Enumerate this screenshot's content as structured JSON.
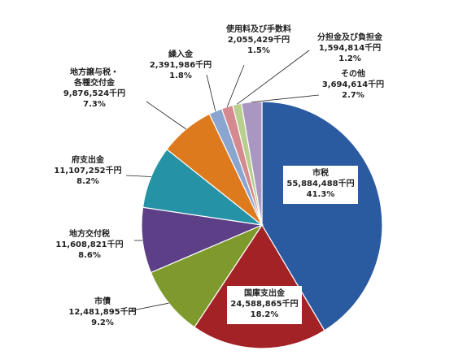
{
  "chart_data": {
    "type": "pie",
    "unit": "千円",
    "slices": [
      {
        "name": "市税",
        "value": 55884488,
        "value_label": "55,884,488千円",
        "percent_label": "41.3%",
        "color": "#2A5AA0"
      },
      {
        "name": "国庫支出金",
        "value": 24588865,
        "value_label": "24,588,865千円",
        "percent_label": "18.2%",
        "color": "#A32225"
      },
      {
        "name": "市債",
        "value": 12481895,
        "value_label": "12,481,895千円",
        "percent_label": "9.2%",
        "color": "#7E9A2D"
      },
      {
        "name": "地方交付税",
        "value": 11608821,
        "value_label": "11,608,821千円",
        "percent_label": "8.6%",
        "color": "#5C3F86"
      },
      {
        "name": "府支出金",
        "value": 11107252,
        "value_label": "11,107,252千円",
        "percent_label": "8.2%",
        "color": "#2592A6"
      },
      {
        "name": "地方譲与税・各種交付金",
        "name_lines": [
          "地方譲与税・",
          "各種交付金"
        ],
        "value": 9876524,
        "value_label": "9,876,524千円",
        "percent_label": "7.3%",
        "color": "#DE7A1E"
      },
      {
        "name": "繰入金",
        "value": 2391986,
        "value_label": "2,391,986千円",
        "percent_label": "1.8%",
        "color": "#8AA5D0"
      },
      {
        "name": "使用料及び手数料",
        "value": 2055429,
        "value_label": "2,055,429千円",
        "percent_label": "1.5%",
        "color": "#D48A8E"
      },
      {
        "name": "分担金及び負担金",
        "value": 1594814,
        "value_label": "1,594,814千円",
        "percent_label": "1.2%",
        "color": "#B8CF8E"
      },
      {
        "name": "その他",
        "value": 3694614,
        "value_label": "3,694,614千円",
        "percent_label": "2.7%",
        "color": "#A997C2"
      }
    ]
  }
}
